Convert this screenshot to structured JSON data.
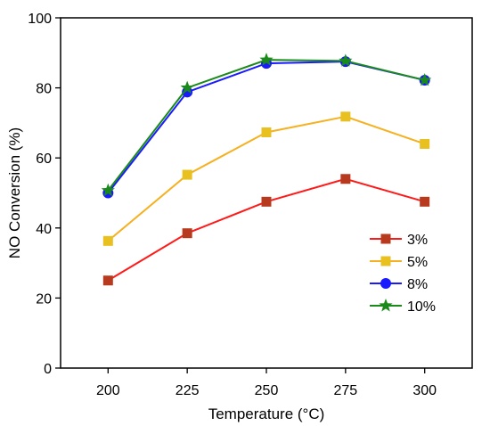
{
  "chart_data": {
    "type": "line",
    "xlabel": "Temperature (°C)",
    "ylabel": "NO Conversion (%)",
    "x": [
      200,
      225,
      250,
      275,
      300
    ],
    "xlim": [
      185,
      315
    ],
    "ylim": [
      0,
      100
    ],
    "x_ticks": [
      "200",
      "225",
      "250",
      "275",
      "300"
    ],
    "y_ticks": [
      "0",
      "20",
      "40",
      "60",
      "80",
      "100"
    ],
    "grid": false,
    "legend_position": "right-lower",
    "series": [
      {
        "name": "3%",
        "values": [
          25,
          38.5,
          47.5,
          54,
          47.5
        ],
        "color": "#ff1a1a",
        "marker": "square",
        "marker_color": "#b83a1e"
      },
      {
        "name": "5%",
        "values": [
          36.3,
          55.2,
          67.3,
          71.8,
          64
        ],
        "color": "#f5b120",
        "marker": "square",
        "marker_color": "#e8c020"
      },
      {
        "name": "8%",
        "values": [
          50,
          78.8,
          87,
          87.5,
          82.2
        ],
        "color": "#1a1aff",
        "marker": "circle",
        "marker_color": "#1a1aff"
      },
      {
        "name": "10%",
        "values": [
          50.7,
          80,
          88,
          87.7,
          82.2
        ],
        "color": "#1a8a1a",
        "marker": "star",
        "marker_color": "#1a8a1a"
      }
    ]
  }
}
